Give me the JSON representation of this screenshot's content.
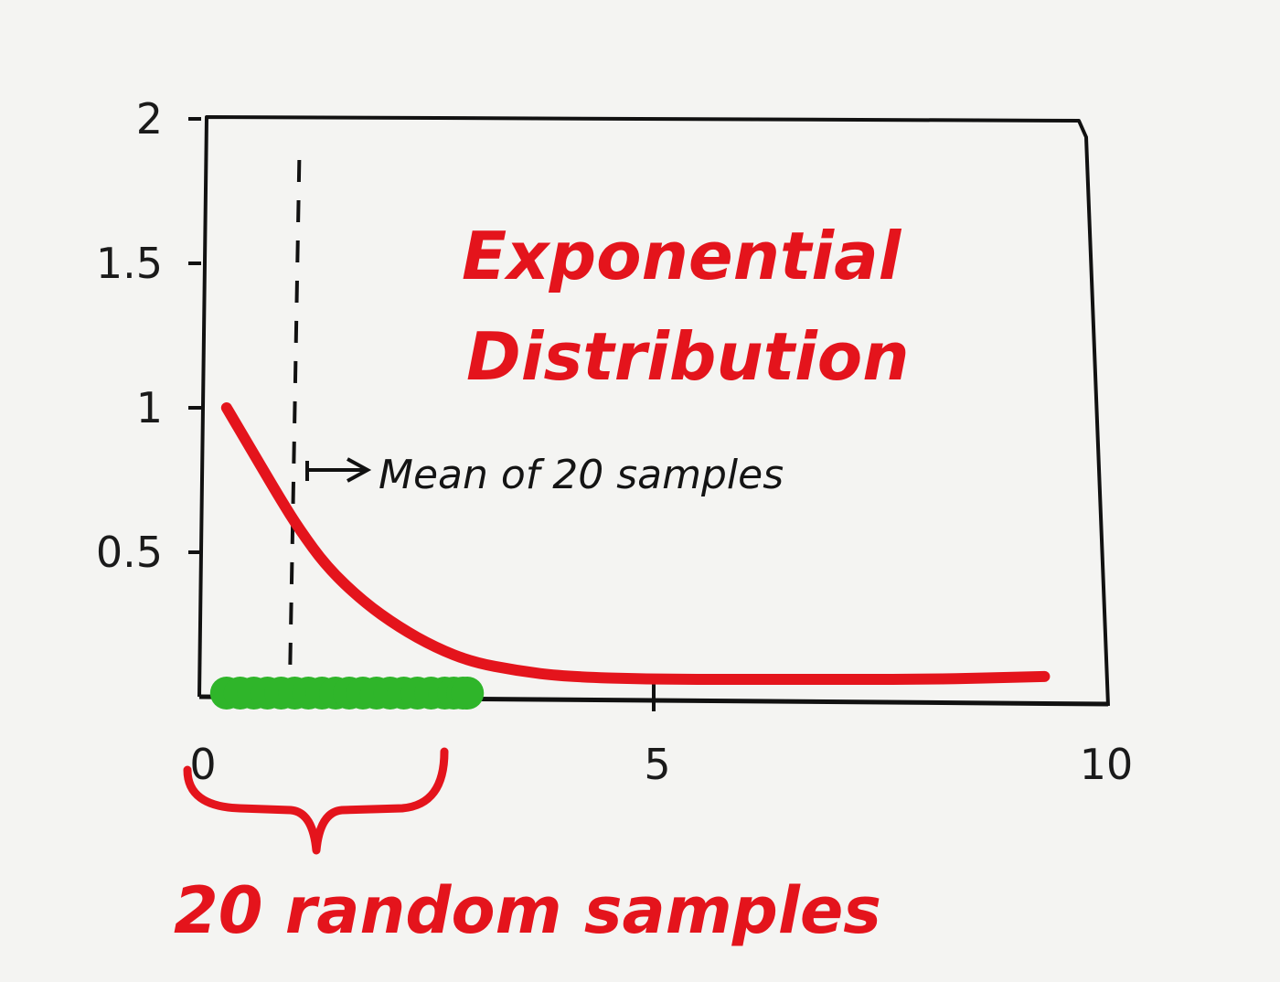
{
  "chart_data": {
    "type": "line",
    "title": [
      "Exponential",
      "Distribution"
    ],
    "xlim": [
      0,
      10
    ],
    "ylim": [
      0,
      2
    ],
    "x_ticks": [
      "0",
      "5",
      "10"
    ],
    "y_ticks": [
      "2",
      "1.5",
      "1",
      "0.5"
    ],
    "series": [
      {
        "color": "#e4141c",
        "x": [
          0.3,
          0.6,
          0.9,
          1.1,
          1.4,
          1.8,
          2.2,
          2.6,
          3.0,
          3.5,
          4.0,
          5.0,
          6.0,
          7.0,
          8.0,
          9.3
        ],
        "y": [
          1.0,
          0.84,
          0.68,
          0.58,
          0.45,
          0.33,
          0.24,
          0.17,
          0.12,
          0.09,
          0.07,
          0.06,
          0.06,
          0.06,
          0.06,
          0.07
        ]
      }
    ],
    "samples": {
      "color": "#2fb52a",
      "x": [
        0.3,
        0.45,
        0.6,
        0.75,
        0.9,
        1.05,
        1.2,
        1.35,
        1.5,
        1.65,
        1.8,
        1.95,
        2.1,
        2.25,
        2.4,
        2.55,
        2.7,
        2.8,
        2.9,
        2.95
      ]
    },
    "mean_line": {
      "x": 1.1,
      "label": "Mean of 20 samples"
    },
    "annotations": {
      "samples_label": "20 random samples"
    }
  }
}
